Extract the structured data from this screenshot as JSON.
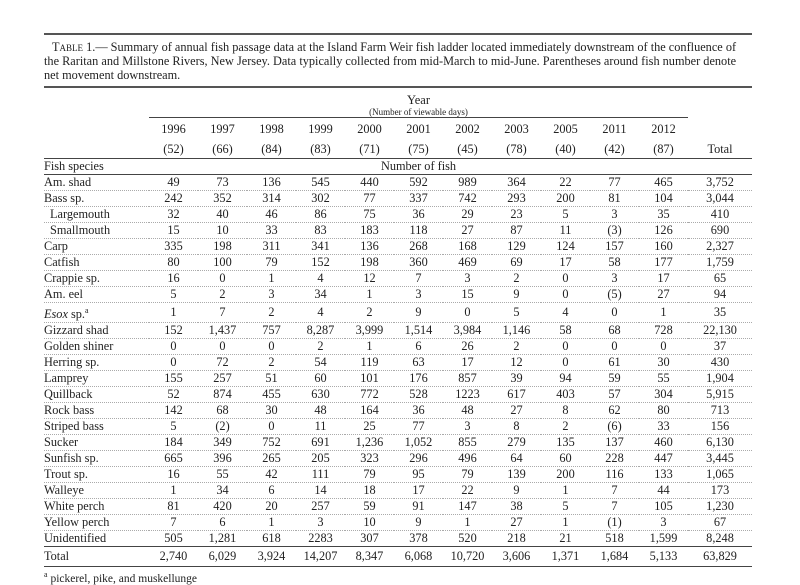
{
  "caption": {
    "label": "Table 1.",
    "text": "— Summary of annual fish passage data at the Island Farm Weir fish ladder located immediately downstream of the confluence of the Raritan and Millstone Rivers, New Jersey.  Data typically collected from mid-March to mid-June.  Parentheses around fish number denote net movement downstream."
  },
  "header": {
    "year_label": "Year",
    "days_label": "(Number of viewable days)",
    "years": [
      "1996",
      "1997",
      "1998",
      "1999",
      "2000",
      "2001",
      "2002",
      "2003",
      "2005",
      "2011",
      "2012"
    ],
    "days": [
      "(52)",
      "(66)",
      "(84)",
      "(83)",
      "(71)",
      "(75)",
      "(45)",
      "(78)",
      "(40)",
      "(42)",
      "(87)"
    ],
    "total_label": "Total",
    "species_label": "Fish species",
    "number_label": "Number of fish"
  },
  "rows": [
    {
      "name": "Am. shad",
      "values": [
        "49",
        "73",
        "136",
        "545",
        "440",
        "592",
        "989",
        "364",
        "22",
        "77",
        "465"
      ],
      "total": "3,752"
    },
    {
      "name": "Bass sp.",
      "values": [
        "242",
        "352",
        "314",
        "302",
        "77",
        "337",
        "742",
        "293",
        "200",
        "81",
        "104"
      ],
      "total": "3,044"
    },
    {
      "name": "Largemouth",
      "indent": true,
      "values": [
        "32",
        "40",
        "46",
        "86",
        "75",
        "36",
        "29",
        "23",
        "5",
        "3",
        "35"
      ],
      "total": "410"
    },
    {
      "name": "Smallmouth",
      "indent": true,
      "values": [
        "15",
        "10",
        "33",
        "83",
        "183",
        "118",
        "27",
        "87",
        "11",
        "(3)",
        "126"
      ],
      "total": "690"
    },
    {
      "name": "Carp",
      "values": [
        "335",
        "198",
        "311",
        "341",
        "136",
        "268",
        "168",
        "129",
        "124",
        "157",
        "160"
      ],
      "total": "2,327"
    },
    {
      "name": "Catfish",
      "values": [
        "80",
        "100",
        "79",
        "152",
        "198",
        "360",
        "469",
        "69",
        "17",
        "58",
        "177"
      ],
      "total": "1,759"
    },
    {
      "name": "Crappie sp.",
      "values": [
        "16",
        "0",
        "1",
        "4",
        "12",
        "7",
        "3",
        "2",
        "0",
        "3",
        "17"
      ],
      "total": "65"
    },
    {
      "name": "Am. eel",
      "values": [
        "5",
        "2",
        "3",
        "34",
        "1",
        "3",
        "15",
        "9",
        "0",
        "(5)",
        "27"
      ],
      "total": "94"
    },
    {
      "name": "Esox",
      "suffix": " sp.",
      "footnote": "a",
      "italic": true,
      "values": [
        "1",
        "7",
        "2",
        "4",
        "2",
        "9",
        "0",
        "5",
        "4",
        "0",
        "1"
      ],
      "total": "35"
    },
    {
      "name": "Gizzard shad",
      "values": [
        "152",
        "1,437",
        "757",
        "8,287",
        "3,999",
        "1,514",
        "3,984",
        "1,146",
        "58",
        "68",
        "728"
      ],
      "total": "22,130"
    },
    {
      "name": "Golden shiner",
      "values": [
        "0",
        "0",
        "0",
        "2",
        "1",
        "6",
        "26",
        "2",
        "0",
        "0",
        "0"
      ],
      "total": "37"
    },
    {
      "name": "Herring sp.",
      "values": [
        "0",
        "72",
        "2",
        "54",
        "119",
        "63",
        "17",
        "12",
        "0",
        "61",
        "30"
      ],
      "total": "430"
    },
    {
      "name": "Lamprey",
      "values": [
        "155",
        "257",
        "51",
        "60",
        "101",
        "176",
        "857",
        "39",
        "94",
        "59",
        "55"
      ],
      "total": "1,904"
    },
    {
      "name": "Quillback",
      "values": [
        "52",
        "874",
        "455",
        "630",
        "772",
        "528",
        "1223",
        "617",
        "403",
        "57",
        "304"
      ],
      "total": "5,915"
    },
    {
      "name": "Rock bass",
      "values": [
        "142",
        "68",
        "30",
        "48",
        "164",
        "36",
        "48",
        "27",
        "8",
        "62",
        "80"
      ],
      "total": "713"
    },
    {
      "name": "Striped bass",
      "values": [
        "5",
        "(2)",
        "0",
        "11",
        "25",
        "77",
        "3",
        "8",
        "2",
        "(6)",
        "33"
      ],
      "total": "156"
    },
    {
      "name": "Sucker",
      "values": [
        "184",
        "349",
        "752",
        "691",
        "1,236",
        "1,052",
        "855",
        "279",
        "135",
        "137",
        "460"
      ],
      "total": "6,130"
    },
    {
      "name": "Sunfish sp.",
      "values": [
        "665",
        "396",
        "265",
        "205",
        "323",
        "296",
        "496",
        "64",
        "60",
        "228",
        "447"
      ],
      "total": "3,445"
    },
    {
      "name": "Trout sp.",
      "values": [
        "16",
        "55",
        "42",
        "111",
        "79",
        "95",
        "79",
        "139",
        "200",
        "116",
        "133"
      ],
      "total": "1,065"
    },
    {
      "name": "Walleye",
      "values": [
        "1",
        "34",
        "6",
        "14",
        "18",
        "17",
        "22",
        "9",
        "1",
        "7",
        "44"
      ],
      "total": "173"
    },
    {
      "name": "White perch",
      "values": [
        "81",
        "420",
        "20",
        "257",
        "59",
        "91",
        "147",
        "38",
        "5",
        "7",
        "105"
      ],
      "total": "1,230"
    },
    {
      "name": "Yellow perch",
      "values": [
        "7",
        "6",
        "1",
        "3",
        "10",
        "9",
        "1",
        "27",
        "1",
        "(1)",
        "3"
      ],
      "total": "67"
    },
    {
      "name": "Unidentified",
      "values": [
        "505",
        "1,281",
        "618",
        "2283",
        "307",
        "378",
        "520",
        "218",
        "21",
        "518",
        "1,599"
      ],
      "total": "8,248"
    }
  ],
  "totals": {
    "label": "Total",
    "values": [
      "2,740",
      "6,029",
      "3,924",
      "14,207",
      "8,347",
      "6,068",
      "10,720",
      "3,606",
      "1,371",
      "1,684",
      "5,133"
    ],
    "total": "63,829"
  },
  "footnote": {
    "mark": "a",
    "text": " pickerel, pike, and muskellunge"
  }
}
